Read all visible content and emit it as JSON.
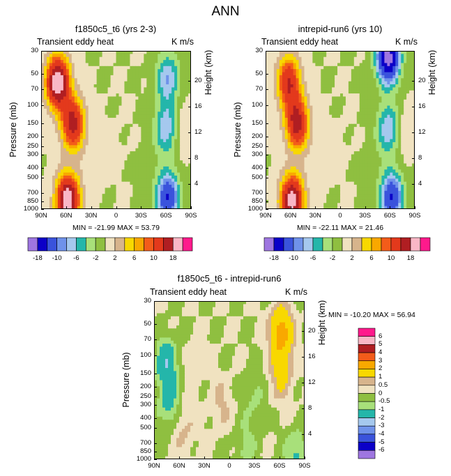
{
  "figure": {
    "title": "ANN"
  },
  "chart_data": [
    {
      "type": "heatmap",
      "title": "f1850c5_t6 (yrs 2-3)",
      "subtitle_left": "Transient eddy heat",
      "subtitle_right": "K m/s",
      "xlabel": "",
      "ylabel": "Pressure (mb)",
      "ylabel_right": "Height (km)",
      "x_ticks": [
        "90N",
        "60N",
        "30N",
        "0",
        "30S",
        "60S",
        "90S"
      ],
      "y_ticks": [
        "30",
        "50",
        "70",
        "100",
        "150",
        "200",
        "250",
        "300",
        "400",
        "500",
        "700",
        "850",
        "1000"
      ],
      "y_ticks_right": [
        "20",
        "16",
        "12",
        "8",
        "4"
      ],
      "min_max_text": "MIN = -21.99   MAX =  53.79",
      "colorbar_labels": [
        "-18",
        "-10",
        "-6",
        "-2",
        "2",
        "6",
        "10",
        "18"
      ],
      "features": [
        {
          "lat": 70,
          "p": 60,
          "v": 22
        },
        {
          "lat": 52,
          "p": 150,
          "v": 16
        },
        {
          "lat": 58,
          "p": 830,
          "v": 22
        },
        {
          "lat": 28,
          "p": 350,
          "v": 1
        },
        {
          "lat": -62,
          "p": 55,
          "v": -8
        },
        {
          "lat": -60,
          "p": 170,
          "v": -8
        },
        {
          "lat": -62,
          "p": 780,
          "v": -14
        },
        {
          "lat": -38,
          "p": 380,
          "v": -0.5
        },
        {
          "lat": 8,
          "p": 250,
          "v": 0.6
        },
        {
          "lat": -80,
          "p": 180,
          "v": 2.2
        }
      ]
    },
    {
      "type": "heatmap",
      "title": "intrepid-run6 (yrs 10)",
      "subtitle_left": "Transient eddy heat",
      "subtitle_right": "K m/s",
      "xlabel": "",
      "ylabel": "Pressure (mb)",
      "ylabel_right": "Height (km)",
      "x_ticks": [
        "90N",
        "60N",
        "30N",
        "0",
        "30S",
        "60S",
        "90S"
      ],
      "y_ticks": [
        "30",
        "50",
        "70",
        "100",
        "150",
        "200",
        "250",
        "300",
        "400",
        "500",
        "700",
        "850",
        "1000"
      ],
      "y_ticks_right": [
        "20",
        "16",
        "12",
        "8",
        "4"
      ],
      "min_max_text": "MIN = -22.11   MAX =  21.46",
      "colorbar_labels": [
        "-18",
        "-10",
        "-6",
        "-2",
        "2",
        "6",
        "10",
        "18"
      ],
      "features": [
        {
          "lat": 62,
          "p": 60,
          "v": 14
        },
        {
          "lat": 52,
          "p": 150,
          "v": 16
        },
        {
          "lat": 58,
          "p": 830,
          "v": 20
        },
        {
          "lat": 28,
          "p": 350,
          "v": 1
        },
        {
          "lat": -58,
          "p": 35,
          "v": -20
        },
        {
          "lat": -58,
          "p": 170,
          "v": -8
        },
        {
          "lat": -62,
          "p": 780,
          "v": -14
        },
        {
          "lat": -38,
          "p": 380,
          "v": -0.5
        },
        {
          "lat": 8,
          "p": 250,
          "v": 0.6
        },
        {
          "lat": -80,
          "p": 180,
          "v": 2.2
        }
      ]
    },
    {
      "type": "heatmap",
      "title": "f1850c5_t6 - intrepid-run6",
      "subtitle_left": "Transient eddy heat",
      "subtitle_right": "K m/s",
      "xlabel": "",
      "ylabel": "Pressure (mb)",
      "ylabel_right": "Height (km)",
      "x_ticks": [
        "90N",
        "60N",
        "30N",
        "0",
        "30S",
        "60S",
        "90S"
      ],
      "y_ticks": [
        "30",
        "50",
        "70",
        "100",
        "150",
        "200",
        "250",
        "300",
        "400",
        "500",
        "700",
        "850",
        "1000"
      ],
      "y_ticks_right": [
        "20",
        "16",
        "12",
        "8",
        "4"
      ],
      "min_max_text": "MIN = -10.20   MAX =  56.94",
      "colorbar_labels": [
        "6",
        "5",
        "4",
        "3",
        "2",
        "1",
        "0.5",
        "0",
        "-0.5",
        "-1",
        "-2",
        "-3",
        "-4",
        "-5",
        "-6"
      ],
      "features": [
        {
          "lat": 75,
          "p": 120,
          "v": -1.8
        },
        {
          "lat": 72,
          "p": 300,
          "v": -1.2
        },
        {
          "lat": -62,
          "p": 60,
          "v": 2.5
        },
        {
          "lat": -62,
          "p": 150,
          "v": 1.2
        },
        {
          "lat": 55,
          "p": 500,
          "v": 0.7
        },
        {
          "lat": 10,
          "p": 300,
          "v": 0.6
        },
        {
          "lat": 40,
          "p": 120,
          "v": 0.3
        },
        {
          "lat": -30,
          "p": 250,
          "v": -0.6
        },
        {
          "lat": -20,
          "p": 750,
          "v": -0.7
        },
        {
          "lat": -80,
          "p": 900,
          "v": -1.2
        }
      ]
    }
  ],
  "palette": {
    "abs": [
      "#9e76e0",
      "#0b00c8",
      "#3a53dc",
      "#6f92ea",
      "#a5c8ee",
      "#24b6aa",
      "#a8e07a",
      "#8fbf40",
      "#f0e2c0",
      "#d7b48c",
      "#f8d800",
      "#f9a800",
      "#f35c1a",
      "#e3391c",
      "#b01e22",
      "#f9b7c6",
      "#ff1a8c"
    ],
    "abs_bounds": [
      -18,
      -14,
      -10,
      -8,
      -6,
      -4,
      -2,
      0,
      2,
      4,
      6,
      8,
      10,
      14,
      18
    ],
    "diff": [
      "#9e76e0",
      "#0b00c8",
      "#3a53dc",
      "#6f92ea",
      "#a5c8ee",
      "#24b6aa",
      "#a8e07a",
      "#8fbf40",
      "#f0e2c0",
      "#d7b48c",
      "#f8d800",
      "#f9a800",
      "#f35c1a",
      "#b01e22",
      "#f9b7c6",
      "#ff1a8c"
    ],
    "diff_bounds": [
      -6,
      -5,
      -4,
      -3,
      -2,
      -1,
      -0.5,
      0,
      0.5,
      1,
      2,
      3,
      4,
      5,
      6
    ]
  }
}
